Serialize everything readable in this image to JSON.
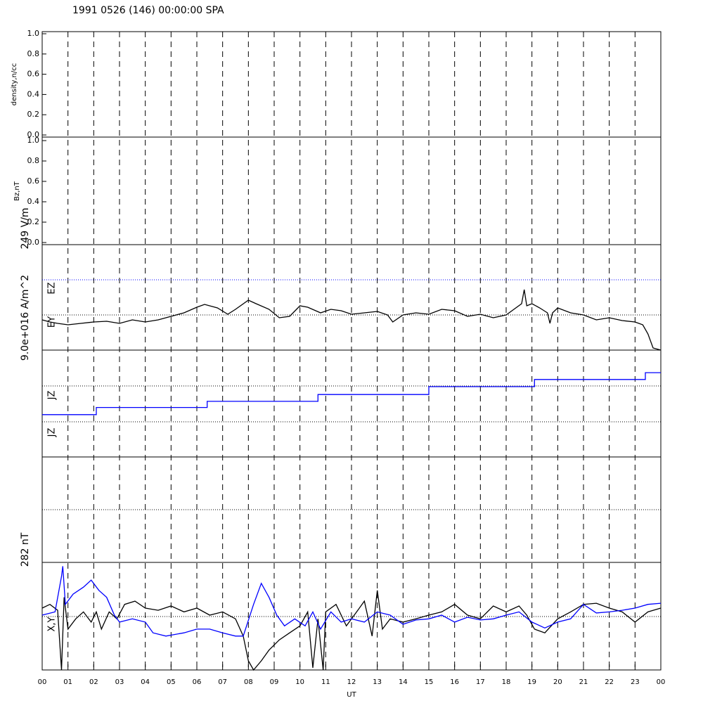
{
  "title": "1991 0526 (146) 00:00:00 SPA",
  "xlabel": "UT",
  "xlim": [
    0,
    24
  ],
  "xticks": [
    {
      "value": 0,
      "label": "00"
    },
    {
      "value": 1,
      "label": "01"
    },
    {
      "value": 2,
      "label": "02"
    },
    {
      "value": 3,
      "label": "03"
    },
    {
      "value": 4,
      "label": "04"
    },
    {
      "value": 5,
      "label": "05"
    },
    {
      "value": 6,
      "label": "06"
    },
    {
      "value": 7,
      "label": "07"
    },
    {
      "value": 8,
      "label": "08"
    },
    {
      "value": 9,
      "label": "09"
    },
    10,
    11,
    12,
    13,
    14,
    15,
    16,
    17,
    18,
    19,
    20,
    21,
    22,
    23,
    {
      "value": 24,
      "label": "00"
    }
  ],
  "annotations": [
    "JZ"
  ],
  "chart_data": [
    {
      "type": "line",
      "ylabel": "density,n/cc",
      "ylim": [
        0,
        1
      ],
      "yticks": [
        {
          "value": 0,
          "label": "0.0"
        },
        {
          "value": 0.2,
          "label": "0.2"
        },
        {
          "value": 0.4,
          "label": "0.4"
        },
        {
          "value": 0.6,
          "label": "0.6"
        },
        {
          "value": 0.8,
          "label": "0.8"
        },
        {
          "value": 1,
          "label": "1.0"
        }
      ],
      "series": []
    },
    {
      "type": "line",
      "ylabel": "Bz,nT",
      "ylim": [
        0,
        1
      ],
      "yticks": [
        {
          "value": 0,
          "label": "0.0"
        },
        {
          "value": 0.2,
          "label": "0.2"
        },
        {
          "value": 0.4,
          "label": "0.4"
        },
        {
          "value": 0.6,
          "label": "0.6"
        },
        {
          "value": 0.8,
          "label": "0.8"
        },
        {
          "value": 1,
          "label": "1.0"
        }
      ],
      "series": []
    },
    {
      "type": "line",
      "ylabel": "249 V/m",
      "ylim": [
        -1,
        2
      ],
      "series": [
        {
          "name": "EZ",
          "color": "#0000ff",
          "dotted": true,
          "x": [
            0,
            24
          ],
          "values": [
            1,
            1
          ]
        },
        {
          "name": "EY",
          "color": "#000000",
          "x": [
            0,
            0.3,
            0.6,
            1,
            1.5,
            2,
            2.5,
            3,
            3.5,
            4,
            4.5,
            5,
            5.5,
            6,
            6.3,
            6.8,
            7.2,
            7.5,
            8,
            8.3,
            8.8,
            9.2,
            9.6,
            10,
            10.3,
            10.8,
            11.2,
            11.6,
            12,
            12.5,
            13,
            13.4,
            13.6,
            14,
            14.5,
            15,
            15.5,
            16,
            16.5,
            17,
            17.5,
            18,
            18.3,
            18.6,
            18.7,
            18.8,
            19,
            19.3,
            19.6,
            19.7,
            19.8,
            20,
            20.5,
            21,
            21.5,
            22,
            22.5,
            23,
            23.3,
            23.5,
            23.7,
            24
          ],
          "values": [
            -0.14,
            -0.2,
            -0.24,
            -0.28,
            -0.24,
            -0.2,
            -0.18,
            -0.24,
            -0.14,
            -0.2,
            -0.14,
            -0.04,
            0.06,
            0.22,
            0.3,
            0.2,
            0.02,
            0.16,
            0.42,
            0.32,
            0.16,
            -0.08,
            -0.04,
            0.26,
            0.22,
            0.06,
            0.16,
            0.12,
            0.02,
            0.06,
            0.1,
            0,
            -0.2,
            0,
            0.06,
            0.02,
            0.16,
            0.12,
            -0.04,
            0.02,
            -0.08,
            0,
            0.16,
            0.32,
            0.72,
            0.26,
            0.32,
            0.2,
            0.06,
            -0.24,
            0.06,
            0.2,
            0.06,
            0,
            -0.14,
            -0.08,
            -0.16,
            -0.2,
            -0.28,
            -0.54,
            -0.94,
            -1
          ]
        }
      ]
    },
    {
      "type": "line",
      "ylabel": "9.0e+016 A/m^2",
      "ylim": [
        -1,
        1
      ],
      "series": [
        {
          "name": "JZ",
          "color": "#0000ff",
          "x": [
            0,
            2.1,
            2.1,
            6.4,
            6.4,
            10.7,
            10.7,
            15,
            15,
            19.1,
            19.1,
            23.4,
            23.4,
            24
          ],
          "values": [
            -0.8,
            -0.8,
            -0.6,
            -0.6,
            -0.43,
            -0.43,
            -0.24,
            -0.24,
            -0.02,
            -0.02,
            0.18,
            0.18,
            0.37,
            0.37
          ]
        }
      ]
    },
    {
      "type": "line",
      "ylabel": "282 nT",
      "ylim": [
        -1,
        1
      ],
      "series_label": "X,Y",
      "series": [
        {
          "name": "X",
          "color": "#000000",
          "x": [
            0,
            0.3,
            0.6,
            0.75,
            0.85,
            1,
            1.3,
            1.6,
            1.9,
            2.1,
            2.3,
            2.6,
            2.9,
            3.2,
            3.6,
            4,
            4.5,
            5,
            5.5,
            6,
            6.5,
            7,
            7.5,
            7.8,
            8,
            8.2,
            8.5,
            8.8,
            9.2,
            9.6,
            10,
            10.3,
            10.5,
            10.7,
            10.9,
            11,
            11.4,
            11.8,
            12.2,
            12.5,
            12.8,
            13,
            13.2,
            13.5,
            14,
            14.5,
            15,
            15.5,
            16,
            16.5,
            17,
            17.5,
            18,
            18.5,
            18.8,
            19.1,
            19.5,
            20,
            20.5,
            21,
            21.5,
            22,
            22.5,
            23,
            23.5,
            24
          ],
          "values": [
            0.15,
            0.22,
            0.11,
            -1,
            0.35,
            -0.24,
            -0.05,
            0.08,
            -0.11,
            0.08,
            -0.24,
            0.08,
            -0.05,
            0.22,
            0.28,
            0.15,
            0.11,
            0.19,
            0.08,
            0.15,
            0.02,
            0.08,
            -0.05,
            -0.37,
            -0.83,
            -1,
            -0.83,
            -0.63,
            -0.44,
            -0.31,
            -0.18,
            0.08,
            -0.96,
            -0.05,
            -1,
            0.08,
            0.22,
            -0.18,
            0.08,
            0.28,
            -0.37,
            0.48,
            -0.24,
            -0.05,
            -0.11,
            -0.05,
            0.02,
            0.08,
            0.22,
            0.02,
            -0.05,
            0.19,
            0.08,
            0.19,
            0.02,
            -0.24,
            -0.31,
            -0.05,
            0.08,
            0.22,
            0.24,
            0.15,
            0.08,
            -0.11,
            0.08,
            0.15
          ]
        },
        {
          "name": "Y",
          "color": "#0000ff",
          "x": [
            0,
            0.5,
            0.75,
            0.8,
            0.9,
            1.2,
            1.6,
            1.9,
            2.2,
            2.5,
            2.8,
            3,
            3.5,
            4,
            4.3,
            4.8,
            5.5,
            6,
            6.5,
            7,
            7.5,
            7.8,
            8.2,
            8.5,
            8.8,
            9.1,
            9.4,
            9.8,
            10.2,
            10.5,
            10.8,
            11.2,
            11.6,
            12,
            12.5,
            13,
            13.5,
            14,
            14.5,
            15,
            15.5,
            16,
            16.5,
            17,
            17.5,
            18,
            18.5,
            19,
            19.5,
            20,
            20.5,
            21,
            21.5,
            22,
            22.5,
            23,
            23.5,
            24
          ],
          "values": [
            0.02,
            0.08,
            0.74,
            0.93,
            0.22,
            0.41,
            0.54,
            0.67,
            0.48,
            0.35,
            0.02,
            -0.11,
            -0.05,
            -0.11,
            -0.31,
            -0.37,
            -0.31,
            -0.24,
            -0.24,
            -0.31,
            -0.37,
            -0.37,
            0.22,
            0.61,
            0.35,
            0.02,
            -0.18,
            -0.05,
            -0.18,
            0.08,
            -0.24,
            0.08,
            -0.11,
            -0.05,
            -0.11,
            0.08,
            0.02,
            -0.15,
            -0.07,
            -0.05,
            0.02,
            -0.11,
            -0.02,
            -0.07,
            -0.05,
            0.02,
            0.08,
            -0.11,
            -0.22,
            -0.11,
            -0.05,
            0.22,
            0.06,
            0.08,
            0.11,
            0.15,
            0.22,
            0.24
          ]
        }
      ]
    }
  ]
}
